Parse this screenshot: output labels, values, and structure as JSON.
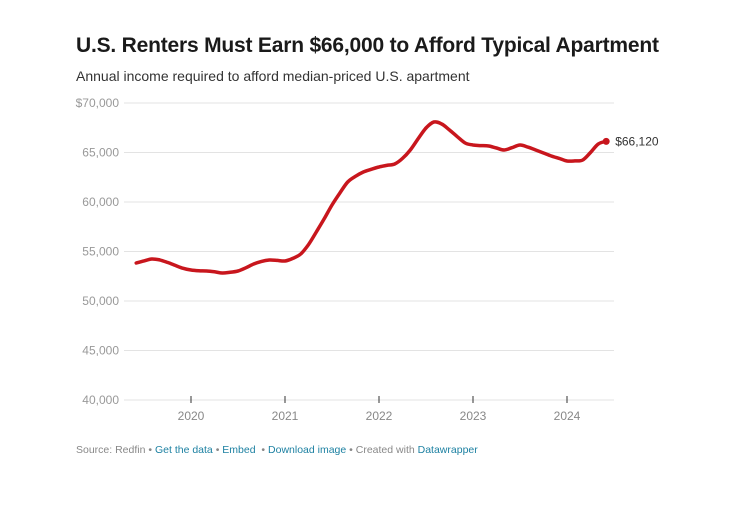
{
  "header": {
    "title": "U.S. Renters Must Earn $66,000 to Afford Typical Apartment",
    "subtitle": "Annual income required to afford median-priced U.S. apartment"
  },
  "footer": {
    "source": "Source: Redfin",
    "sep": " • ",
    "get_data": "Get the data",
    "embed": "Embed",
    "download": "Download image",
    "created_with": "Created with",
    "datawrapper": "Datawrapper"
  },
  "colors": {
    "line": "#c8161d",
    "grid": "#e3e3e3",
    "link": "#1d81a2"
  },
  "chart_data": {
    "type": "line",
    "title": "U.S. Renters Must Earn $66,000 to Afford Typical Apartment",
    "subtitle": "Annual income required to afford median-priced U.S. apartment",
    "xlabel": "",
    "ylabel": "",
    "ylim": [
      40000,
      70000
    ],
    "y_ticks": [
      40000,
      45000,
      50000,
      55000,
      60000,
      65000,
      70000
    ],
    "y_tick_labels": [
      "40,000",
      "45,000",
      "50,000",
      "55,000",
      "60,000",
      "65,000",
      "$70,000"
    ],
    "x_ticks": [
      "2020",
      "2021",
      "2022",
      "2023",
      "2024"
    ],
    "grid": true,
    "legend": "none",
    "end_label": "$66,120",
    "series": [
      {
        "name": "Annual income required",
        "x": [
          "2019-06",
          "2019-07",
          "2019-08",
          "2019-09",
          "2019-10",
          "2019-11",
          "2019-12",
          "2020-01",
          "2020-02",
          "2020-03",
          "2020-04",
          "2020-05",
          "2020-06",
          "2020-07",
          "2020-08",
          "2020-09",
          "2020-10",
          "2020-11",
          "2020-12",
          "2021-01",
          "2021-02",
          "2021-03",
          "2021-04",
          "2021-05",
          "2021-06",
          "2021-07",
          "2021-08",
          "2021-09",
          "2021-10",
          "2021-11",
          "2021-12",
          "2022-01",
          "2022-02",
          "2022-03",
          "2022-04",
          "2022-05",
          "2022-06",
          "2022-07",
          "2022-08",
          "2022-09",
          "2022-10",
          "2022-11",
          "2022-12",
          "2023-01",
          "2023-02",
          "2023-03",
          "2023-04",
          "2023-05",
          "2023-06",
          "2023-07",
          "2023-08",
          "2023-09",
          "2023-10",
          "2023-11",
          "2023-12",
          "2024-01",
          "2024-02",
          "2024-03",
          "2024-04",
          "2024-05",
          "2024-06"
        ],
        "values": [
          53840,
          54050,
          54240,
          54150,
          53900,
          53600,
          53300,
          53130,
          53050,
          53030,
          52950,
          52830,
          52900,
          53030,
          53350,
          53740,
          54000,
          54140,
          54100,
          54040,
          54300,
          54750,
          55700,
          56970,
          58300,
          59700,
          60900,
          62020,
          62600,
          63030,
          63300,
          63540,
          63700,
          63840,
          64400,
          65250,
          66400,
          67470,
          68080,
          67880,
          67270,
          66600,
          65960,
          65760,
          65700,
          65660,
          65450,
          65250,
          65500,
          65760,
          65550,
          65250,
          64950,
          64650,
          64400,
          64140,
          64150,
          64240,
          65000,
          65860,
          66120
        ]
      }
    ]
  }
}
